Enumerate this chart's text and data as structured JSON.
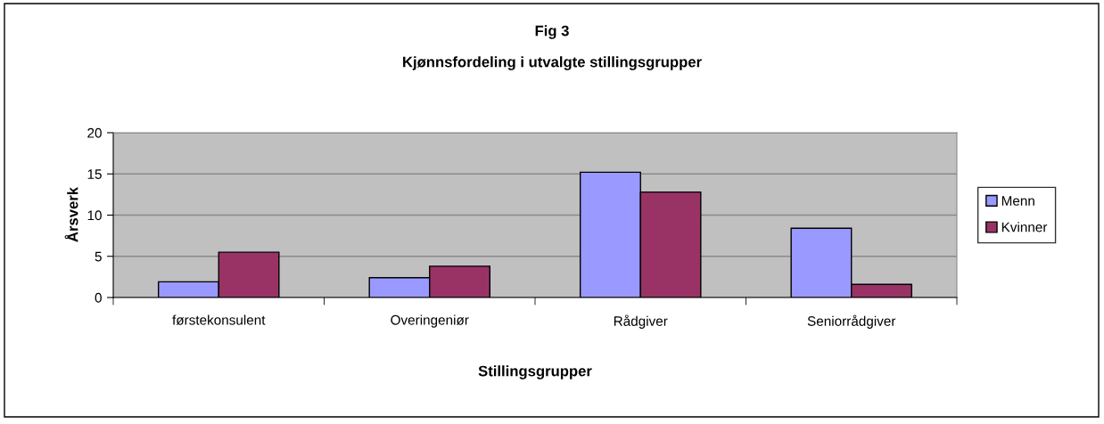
{
  "chart_data": {
    "type": "bar",
    "title": "Fig 3",
    "subtitle": "Kjønnsfordeling i utvalgte stillingsgrupper",
    "xlabel": "Stillingsgrupper",
    "ylabel": "Årsverk",
    "categories": [
      "førstekonsulent",
      "Overingeniør",
      "Rådgiver",
      "Seniorrådgiver"
    ],
    "series": [
      {
        "name": "Menn",
        "color": "#9999ff",
        "values": [
          1.9,
          2.4,
          15.2,
          8.4
        ]
      },
      {
        "name": "Kvinner",
        "color": "#993366",
        "values": [
          5.5,
          3.8,
          12.8,
          1.6
        ]
      }
    ],
    "ylim": [
      0,
      20
    ],
    "yticks": [
      0,
      5,
      10,
      15,
      20
    ],
    "grid": "y",
    "legend": "right"
  }
}
